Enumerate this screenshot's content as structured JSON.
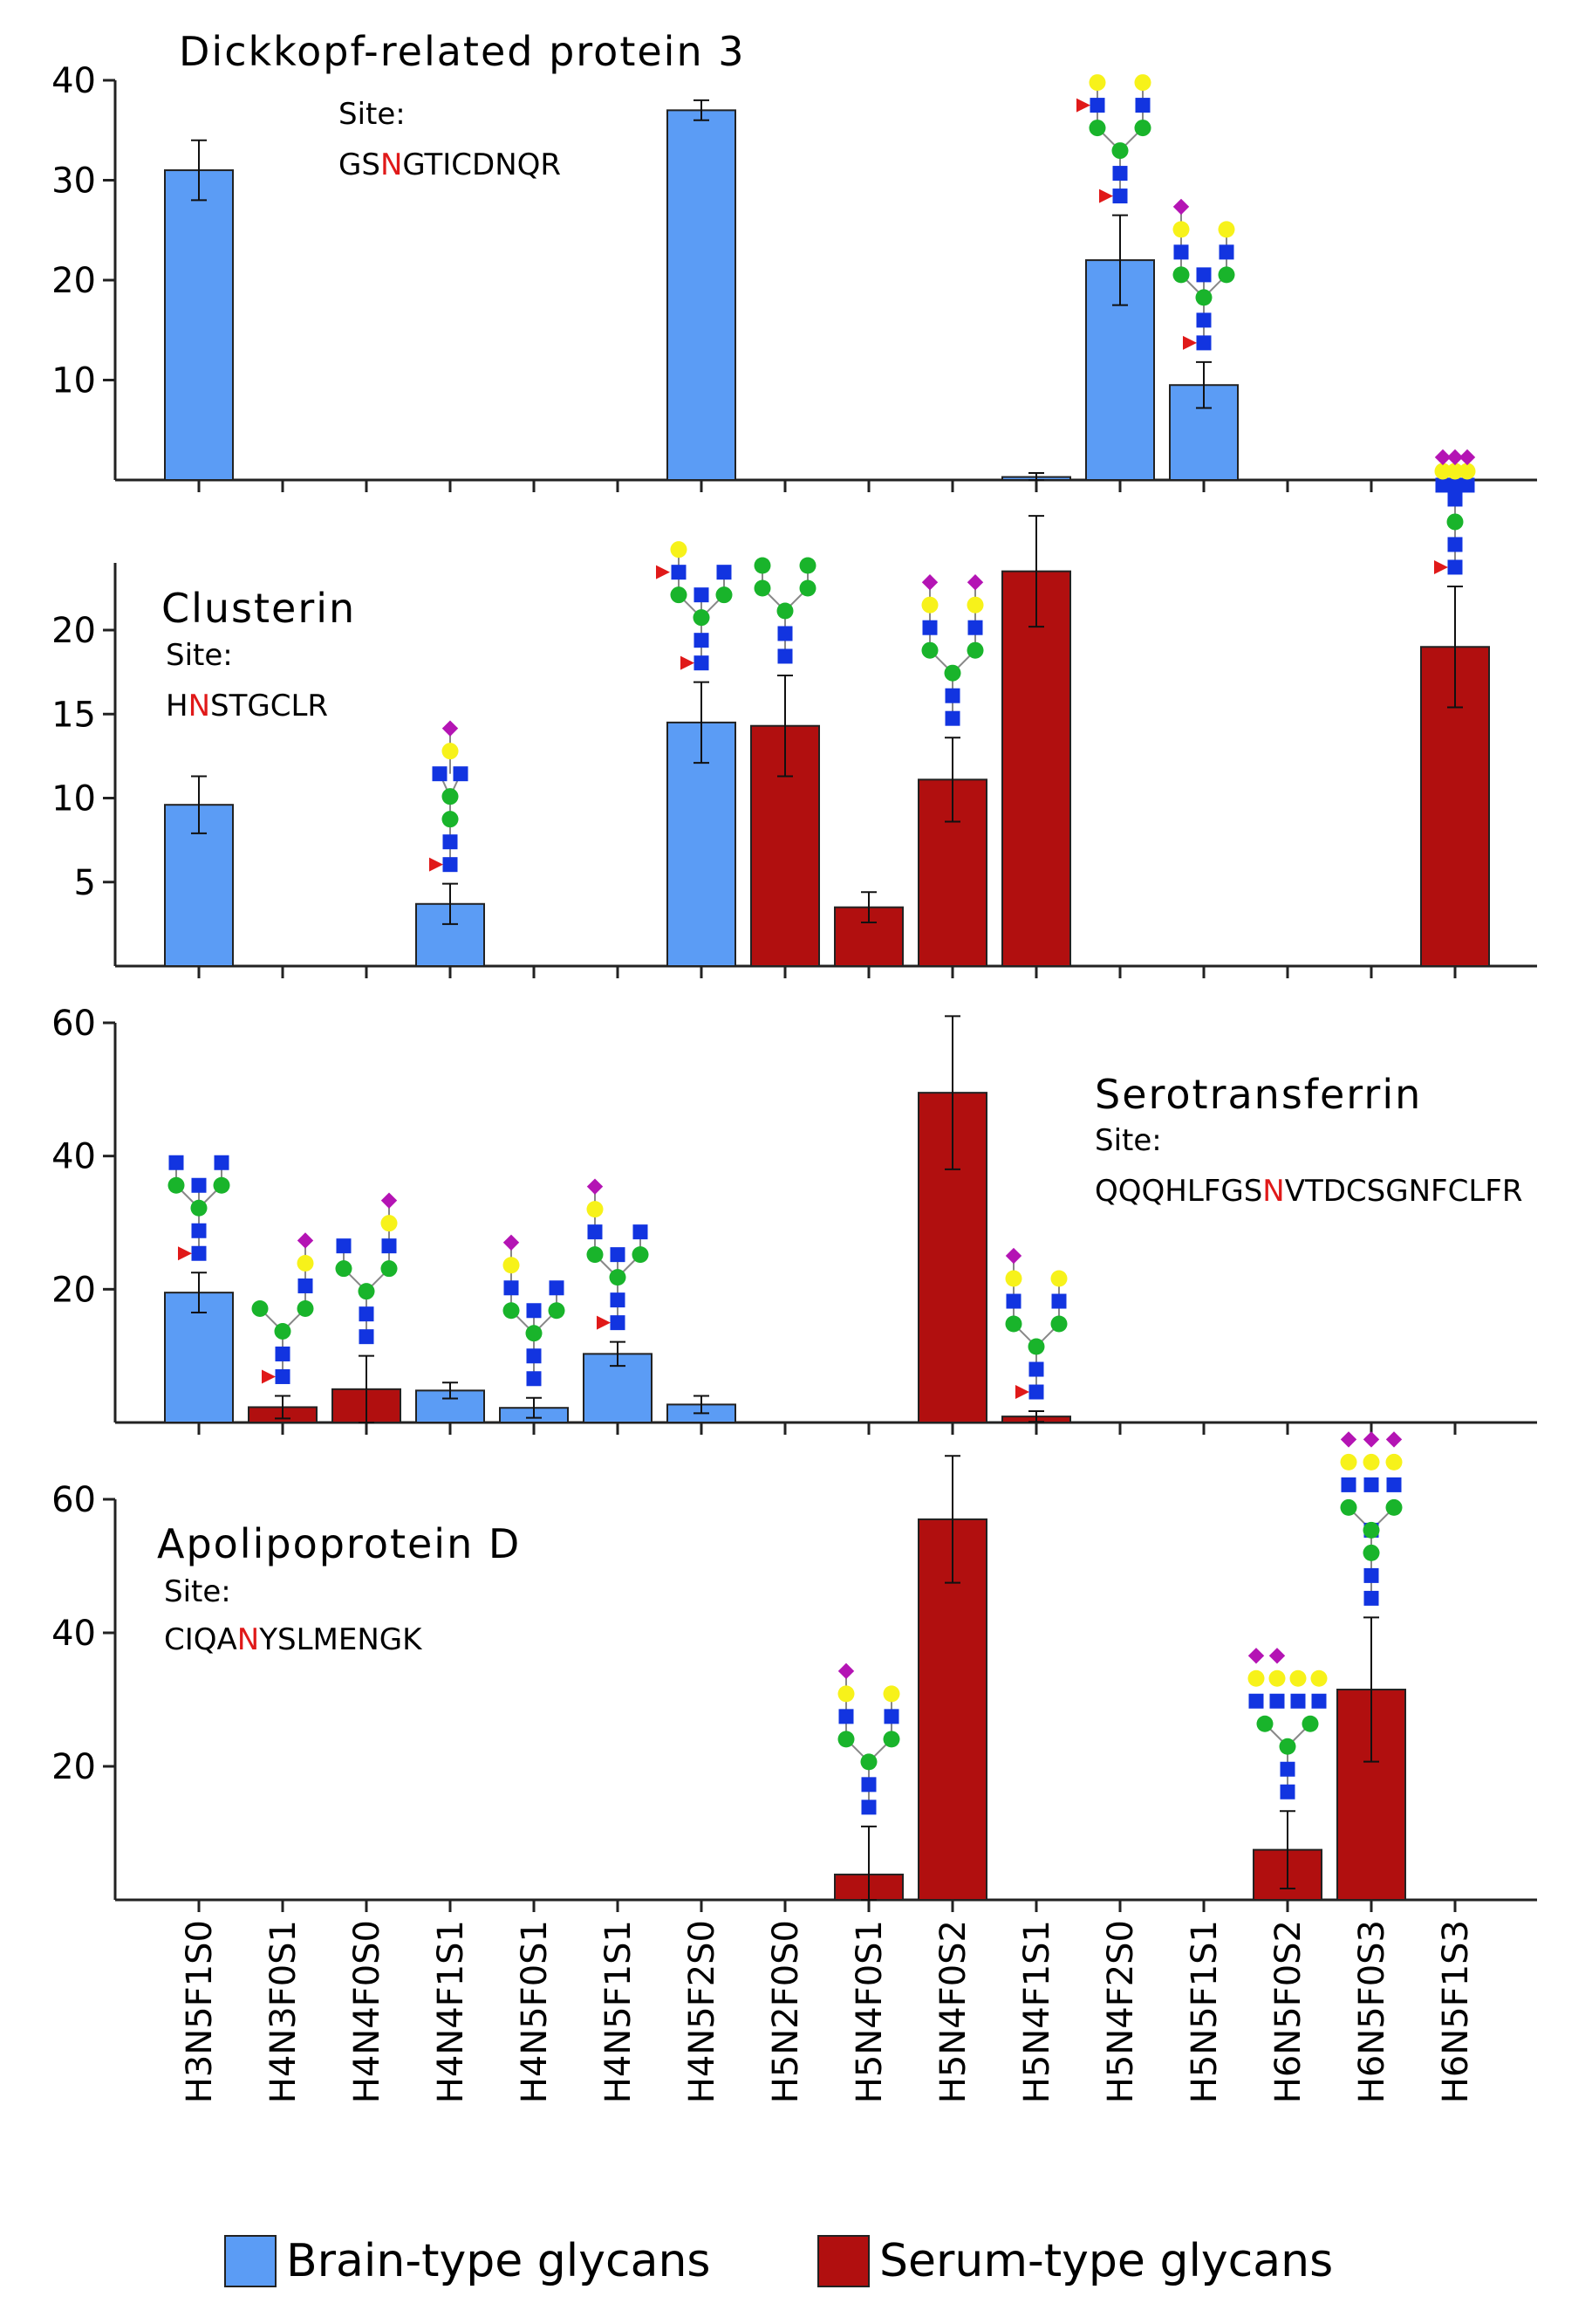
{
  "colors": {
    "brain": "#5b9cf5",
    "serum": "#b10f0f",
    "axis": "#222222",
    "highlight": "#e01919",
    "glycan_blue": "#1234e0",
    "glycan_green": "#19b42b",
    "glycan_yellow": "#f7f21a",
    "glycan_purple": "#b414b4",
    "glycan_red": "#e01919"
  },
  "legend": {
    "brain_label": "Brain-type glycans",
    "serum_label": "Serum-type glycans"
  },
  "chart_data": [
    {
      "type": "bar",
      "title": "Dickkopf-related protein 3",
      "site_label": "Site:",
      "site_sequence": {
        "before": "GS",
        "site": "N",
        "after": "GTICDNQR"
      },
      "categories": [
        "H3N5F1S0",
        "H4N3F0S1",
        "H4N4F0S0",
        "H4N4F1S1",
        "H4N5F0S1",
        "H4N5F1S1",
        "H4N5F2S0",
        "H5N2F0S0",
        "H5N4F0S1",
        "H5N4F0S2",
        "H5N4F1S1",
        "H5N4F2S0",
        "H5N5F1S1",
        "H6N5F0S2",
        "H6N5F0S3",
        "H6N5F1S3"
      ],
      "yticks": [
        10,
        20,
        30,
        40
      ],
      "ylim": [
        0,
        40
      ],
      "bars": [
        {
          "category": "H3N5F1S0",
          "value": 31,
          "error": 3,
          "type": "brain"
        },
        {
          "category": "H4N5F2S0",
          "value": 37,
          "error": 1,
          "type": "brain"
        },
        {
          "category": "H5N4F1S1",
          "value": 0.3,
          "error": 0.4,
          "type": "brain"
        },
        {
          "category": "H5N4F2S0",
          "value": 22,
          "error": 4.5,
          "type": "brain",
          "glycan": "bi_f2_gal"
        },
        {
          "category": "H5N5F1S1",
          "value": 9.5,
          "error": 2.3,
          "type": "brain",
          "glycan": "bis_f1_s1"
        }
      ]
    },
    {
      "type": "bar",
      "title": "Clusterin",
      "site_label": "Site:",
      "site_sequence": {
        "before": "H",
        "site": "N",
        "after": "STGCLR"
      },
      "categories": [
        "H3N5F1S0",
        "H4N3F0S1",
        "H4N4F0S0",
        "H4N4F1S1",
        "H4N5F0S1",
        "H4N5F1S1",
        "H4N5F2S0",
        "H5N2F0S0",
        "H5N4F0S1",
        "H5N4F0S2",
        "H5N4F1S1",
        "H5N4F2S0",
        "H5N5F1S1",
        "H6N5F0S2",
        "H6N5F0S3",
        "H6N5F1S3"
      ],
      "yticks": [
        5,
        10,
        15,
        20
      ],
      "ylim": [
        0,
        24
      ],
      "bars": [
        {
          "category": "H3N5F1S0",
          "value": 9.6,
          "error": 1.7,
          "type": "brain"
        },
        {
          "category": "H4N4F1S1",
          "value": 3.7,
          "error": 1.2,
          "type": "brain",
          "glycan": "hybrid_f1_s1"
        },
        {
          "category": "H4N5F2S0",
          "value": 14.5,
          "error": 2.4,
          "type": "brain",
          "glycan": "bis_f2"
        },
        {
          "category": "H5N2F0S0",
          "value": 14.3,
          "error": 3,
          "type": "serum",
          "glycan": "man5"
        },
        {
          "category": "H5N4F0S1",
          "value": 3.5,
          "error": 0.9,
          "type": "serum"
        },
        {
          "category": "H5N4F0S2",
          "value": 11.1,
          "error": 2.5,
          "type": "serum",
          "glycan": "bi_s2"
        },
        {
          "category": "H5N4F1S1",
          "value": 23.5,
          "error": 3.3,
          "type": "serum"
        },
        {
          "category": "H6N5F1S3",
          "value": 19,
          "error": 3.6,
          "type": "serum",
          "glycan": "tri_f1_s3"
        }
      ]
    },
    {
      "type": "bar",
      "title": "Serotransferrin",
      "site_label": "Site:",
      "site_sequence": {
        "before": "QQQHLFGS",
        "site": "N",
        "after": "VTDCSGNFCLFR"
      },
      "categories": [
        "H3N5F1S0",
        "H4N3F0S1",
        "H4N4F0S0",
        "H4N4F1S1",
        "H4N5F0S1",
        "H4N5F1S1",
        "H4N5F2S0",
        "H5N2F0S0",
        "H5N4F0S1",
        "H5N4F0S2",
        "H5N4F1S1",
        "H5N4F2S0",
        "H5N5F1S1",
        "H6N5F0S2",
        "H6N5F0S3",
        "H6N5F1S3"
      ],
      "yticks": [
        20,
        40,
        60
      ],
      "ylim": [
        0,
        60
      ],
      "bars": [
        {
          "category": "H3N5F1S0",
          "value": 19.5,
          "error": 3,
          "type": "brain",
          "glycan": "bis_f1_agal"
        },
        {
          "category": "H4N3F0S1",
          "value": 2.3,
          "error": 1.7,
          "type": "serum",
          "glycan": "hybrid3_s1"
        },
        {
          "category": "H4N4F0S0",
          "value": 5,
          "error": 5,
          "type": "serum",
          "glycan": "hybrid_s1"
        },
        {
          "category": "H4N4F1S1",
          "value": 4.8,
          "error": 1.2,
          "type": "brain"
        },
        {
          "category": "H4N5F0S1",
          "value": 2.2,
          "error": 1.5,
          "type": "brain",
          "glycan": "bis_s1"
        },
        {
          "category": "H4N5F1S1",
          "value": 10.3,
          "error": 1.8,
          "type": "brain",
          "glycan": "bis_f1_s1b"
        },
        {
          "category": "H4N5F2S0",
          "value": 2.7,
          "error": 1.3,
          "type": "brain"
        },
        {
          "category": "H5N4F0S2",
          "value": 49.5,
          "error": 11.5,
          "type": "serum"
        },
        {
          "category": "H5N4F1S1",
          "value": 0.9,
          "error": 0.8,
          "type": "serum",
          "glycan": "bi_f1_s1"
        }
      ]
    },
    {
      "type": "bar",
      "title": "Apolipoprotein D",
      "site_label": "Site:",
      "site_sequence": {
        "before": "CIQA",
        "site": "N",
        "after": "YSLMENGK"
      },
      "categories": [
        "H3N5F1S0",
        "H4N3F0S1",
        "H4N4F0S0",
        "H4N4F1S1",
        "H4N5F0S1",
        "H4N5F1S1",
        "H4N5F2S0",
        "H5N2F0S0",
        "H5N4F0S1",
        "H5N4F0S2",
        "H5N4F1S1",
        "H5N4F2S0",
        "H5N5F1S1",
        "H6N5F0S2",
        "H6N5F0S3",
        "H6N5F1S3"
      ],
      "yticks": [
        20,
        40,
        60
      ],
      "ylim": [
        0,
        60
      ],
      "bars": [
        {
          "category": "H5N4F0S1",
          "value": 3.8,
          "error": 7.2,
          "type": "serum",
          "glycan": "bi_s1"
        },
        {
          "category": "H5N4F0S2",
          "value": 57,
          "error": 9.5,
          "type": "serum"
        },
        {
          "category": "H6N5F0S2",
          "value": 7.5,
          "error": 5.8,
          "type": "serum",
          "glycan": "tri_s2"
        },
        {
          "category": "H6N5F0S3",
          "value": 31.5,
          "error": 10.8,
          "type": "serum",
          "glycan": "tri_s3"
        }
      ]
    }
  ]
}
